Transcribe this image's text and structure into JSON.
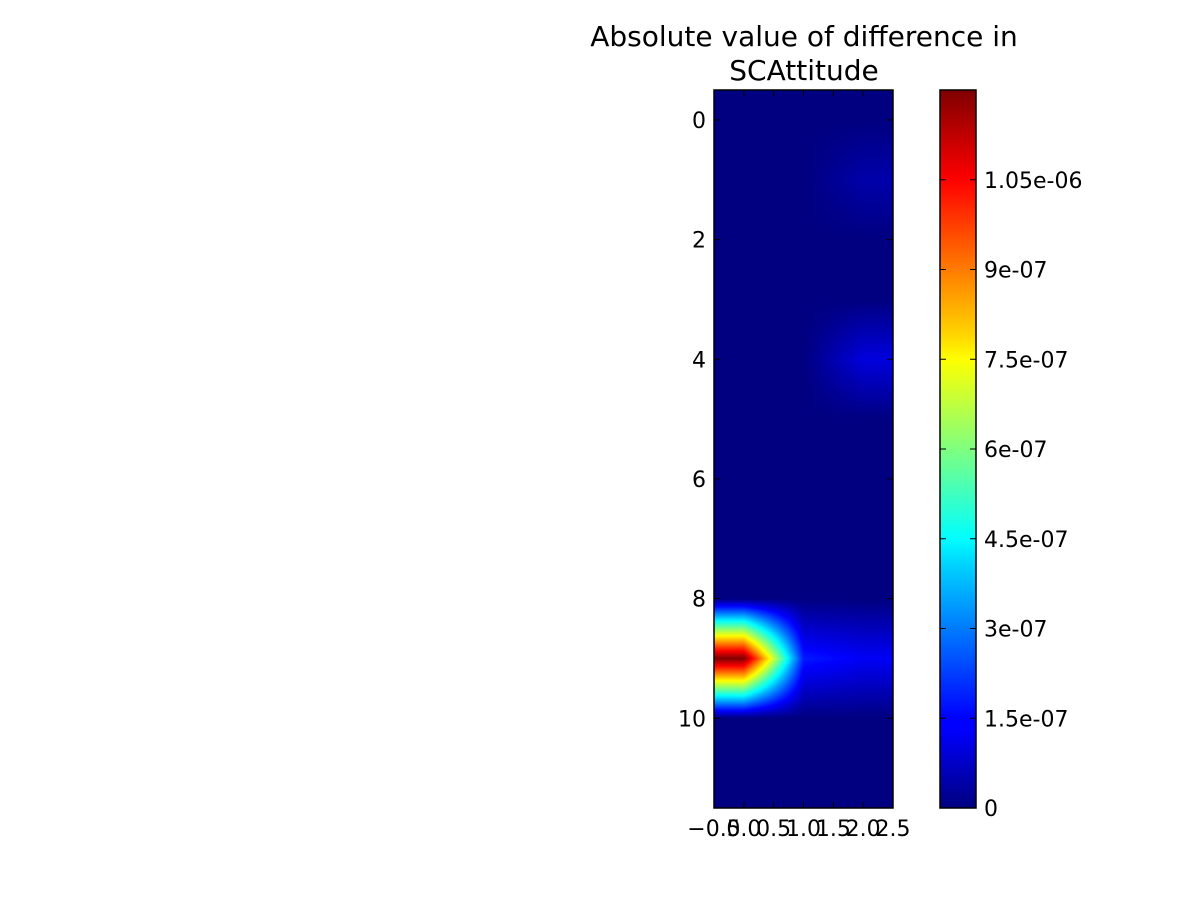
{
  "chart_data": {
    "type": "heatmap",
    "title": [
      "Absolute value of difference in",
      "SCAttitude"
    ],
    "xlabel": "",
    "ylabel": "",
    "colormap": "jet",
    "interpolation": "bilinear",
    "x_extent": [
      -0.5,
      2.5
    ],
    "y_extent": [
      -0.5,
      11.5
    ],
    "x_ticks": [
      {
        "value": -0.5,
        "label": "−0.5"
      },
      {
        "value": 0.0,
        "label": "0.0"
      },
      {
        "value": 0.5,
        "label": "0.5"
      },
      {
        "value": 1.0,
        "label": "1.0"
      },
      {
        "value": 1.5,
        "label": "1.5"
      },
      {
        "value": 2.0,
        "label": "2.0"
      },
      {
        "value": 2.5,
        "label": "2.5"
      }
    ],
    "y_ticks": [
      {
        "value": 0,
        "label": "0"
      },
      {
        "value": 2,
        "label": "2"
      },
      {
        "value": 4,
        "label": "4"
      },
      {
        "value": 6,
        "label": "6"
      },
      {
        "value": 8,
        "label": "8"
      },
      {
        "value": 10,
        "label": "10"
      }
    ],
    "values": [
      [
        0,
        0,
        0
      ],
      [
        0,
        0,
        5e-08
      ],
      [
        0,
        0,
        0
      ],
      [
        0,
        0,
        0
      ],
      [
        0,
        0,
        1.1e-07
      ],
      [
        0,
        0,
        0
      ],
      [
        0,
        0,
        0
      ],
      [
        0,
        0,
        0
      ],
      [
        0,
        0,
        0
      ],
      [
        1.2e-06,
        1.8e-07,
        1.4e-07
      ],
      [
        0,
        0,
        0
      ],
      [
        0,
        0,
        0
      ]
    ],
    "colorbar": {
      "vmin": 0,
      "vmax": 1.2e-06,
      "ticks": [
        {
          "value": 0,
          "label": "0"
        },
        {
          "value": 1.5e-07,
          "label": "1.5e-07"
        },
        {
          "value": 3e-07,
          "label": "3e-07"
        },
        {
          "value": 4.5e-07,
          "label": "4.5e-07"
        },
        {
          "value": 6e-07,
          "label": "6e-07"
        },
        {
          "value": 7.5e-07,
          "label": "7.5e-07"
        },
        {
          "value": 9e-07,
          "label": "9e-07"
        },
        {
          "value": 1.05e-06,
          "label": "1.05e-06"
        }
      ]
    }
  }
}
